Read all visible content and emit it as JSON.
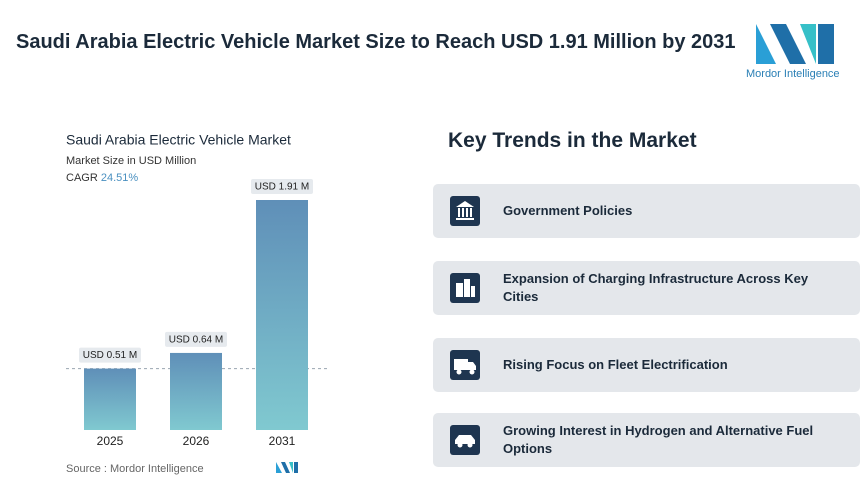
{
  "header": {
    "title": "Saudi Arabia Electric Vehicle Market Size to Reach USD 1.91 Million by 2031"
  },
  "logo": {
    "text": "Mordor Intelligence"
  },
  "chart_data": {
    "type": "bar",
    "title": "Saudi Arabia Electric Vehicle Market",
    "subtitle": "Market Size in USD Million",
    "cagr": {
      "label": "CAGR",
      "value": "24.51%"
    },
    "categories": [
      "2025",
      "2026",
      "2031"
    ],
    "values": [
      0.51,
      0.64,
      1.91
    ],
    "value_labels": [
      "USD 0.51 M",
      "USD 0.64 M",
      "USD 1.91 M"
    ],
    "source": "Source :  Mordor Intelligence"
  },
  "trends": {
    "title": "Key Trends in the Market",
    "items": [
      "Government Policies",
      "Expansion of Charging Infrastructure Across Key Cities",
      "Rising Focus on Fleet Electrification",
      "Growing Interest in Hydrogen and Alternative Fuel Options"
    ]
  }
}
